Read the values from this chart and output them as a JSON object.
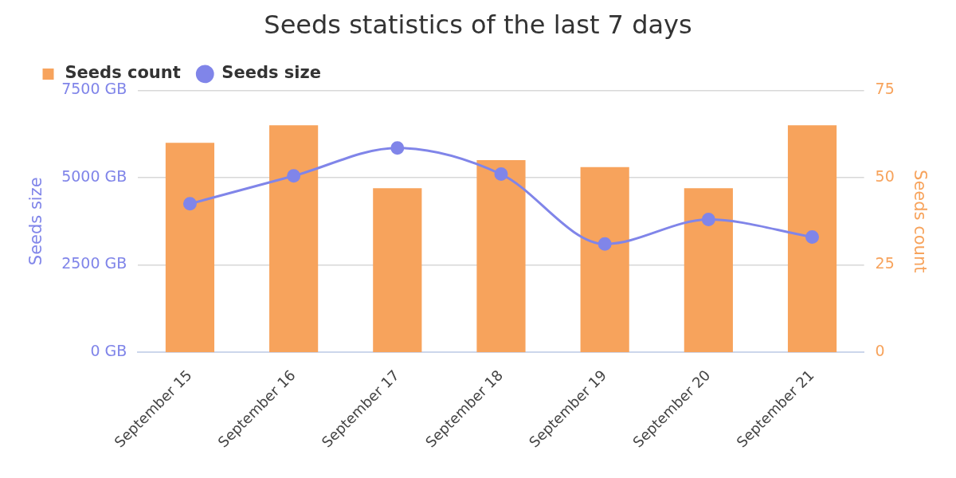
{
  "chart_data": {
    "type": "bar",
    "title": "Seeds statistics of the last 7 days",
    "categories": [
      "September 15",
      "September 16",
      "September 17",
      "September 18",
      "September 19",
      "September 20",
      "September 21"
    ],
    "series": [
      {
        "name": "Seeds count",
        "axis": "y2",
        "color": "#f7a35c",
        "values": [
          60,
          65,
          47,
          55,
          53,
          47,
          65
        ]
      },
      {
        "name": "Seeds size",
        "type": "line",
        "axis": "y",
        "color": "#8085e9",
        "values": [
          4250,
          5050,
          5850,
          5100,
          3100,
          3800,
          3300
        ]
      }
    ],
    "ylabel": "Seeds size",
    "y2label": "Seeds count",
    "ylim": [
      0,
      7500
    ],
    "yticks": [
      {
        "value": 0,
        "label": "0 GB"
      },
      {
        "value": 2500,
        "label": "2500 GB"
      },
      {
        "value": 5000,
        "label": "5000 GB"
      },
      {
        "value": 7500,
        "label": "7500 GB"
      }
    ],
    "y2lim": [
      0,
      75
    ],
    "y2ticks": [
      0,
      25,
      50,
      75
    ],
    "grid": "y",
    "legend": "top left",
    "marker": "circle"
  }
}
